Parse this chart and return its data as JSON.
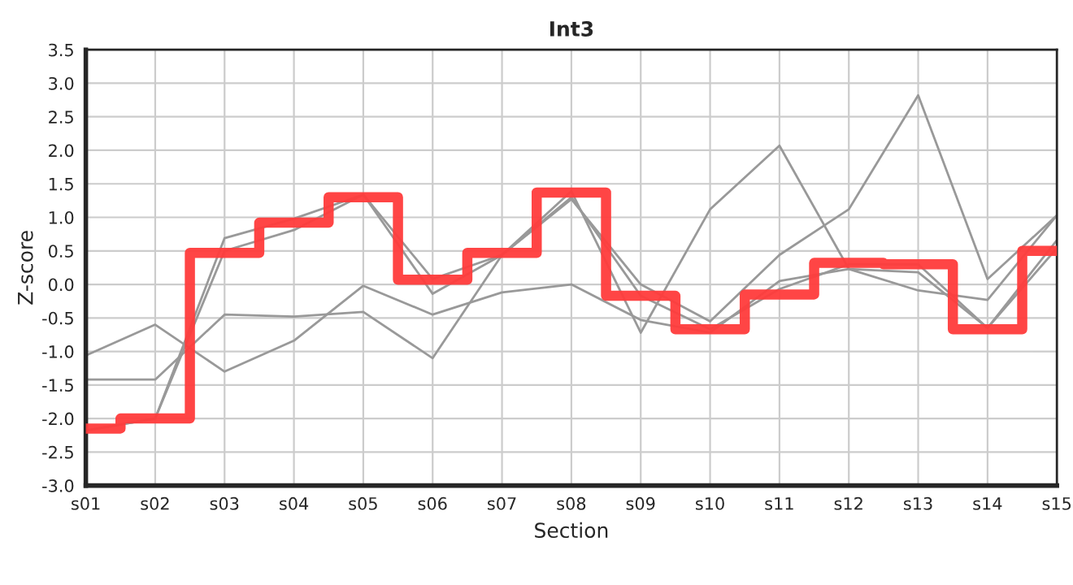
{
  "chart_data": {
    "type": "line",
    "title": "Int3",
    "xlabel": "Section",
    "ylabel": "Z-score",
    "categories": [
      "s01",
      "s02",
      "s03",
      "s04",
      "s05",
      "s06",
      "s07",
      "s08",
      "s09",
      "s10",
      "s11",
      "s12",
      "s13",
      "s14",
      "s15"
    ],
    "series": [
      {
        "color": "#999999",
        "values": [
          -1.06,
          -0.6,
          -1.3,
          -0.84,
          -0.02,
          -0.45,
          -0.12,
          0.0,
          -0.53,
          -0.72,
          0.05,
          0.23,
          -0.09,
          -0.23,
          1.03
        ]
      },
      {
        "color": "#999999",
        "values": [
          -1.42,
          -1.42,
          -0.45,
          -0.48,
          -0.41,
          -1.1,
          0.44,
          1.27,
          0.0,
          -0.55,
          0.44,
          1.12,
          2.82,
          0.08,
          1.03
        ]
      },
      {
        "color": "#999999",
        "values": [
          -2.18,
          -2.0,
          0.69,
          0.98,
          1.34,
          0.08,
          0.44,
          1.39,
          -0.72,
          1.12,
          2.07,
          0.23,
          0.18,
          -0.65,
          0.54
        ]
      },
      {
        "color": "#999999",
        "values": [
          -2.18,
          -2.0,
          0.5,
          0.81,
          1.34,
          -0.14,
          0.44,
          1.3,
          -0.17,
          -0.67,
          -0.07,
          0.3,
          0.3,
          -0.65,
          0.66
        ]
      },
      {
        "type": "step",
        "color": "#ff3b3b",
        "values": [
          -2.15,
          -2.0,
          0.47,
          0.92,
          1.3,
          0.07,
          0.47,
          1.37,
          -0.17,
          -0.67,
          -0.15,
          0.32,
          0.3,
          -0.67,
          0.5
        ]
      }
    ],
    "ylim": [
      -3.0,
      3.5
    ],
    "yticks": [
      {
        "value": -3.0,
        "label": "-3.0"
      },
      {
        "value": -2.5,
        "label": "-2.5"
      },
      {
        "value": -2.0,
        "label": "-2.0"
      },
      {
        "value": -1.5,
        "label": "-1.5"
      },
      {
        "value": -1.0,
        "label": "-1.0"
      },
      {
        "value": -0.5,
        "label": "-0.5"
      },
      {
        "value": 0.0,
        "label": "0.0"
      },
      {
        "value": 0.5,
        "label": "0.5"
      },
      {
        "value": 1.0,
        "label": "1.0"
      },
      {
        "value": 1.5,
        "label": "1.5"
      },
      {
        "value": 2.0,
        "label": "2.0"
      },
      {
        "value": 2.5,
        "label": "2.5"
      },
      {
        "value": 3.0,
        "label": "3.0"
      },
      {
        "value": 3.5,
        "label": "3.5"
      }
    ],
    "grid": true
  }
}
